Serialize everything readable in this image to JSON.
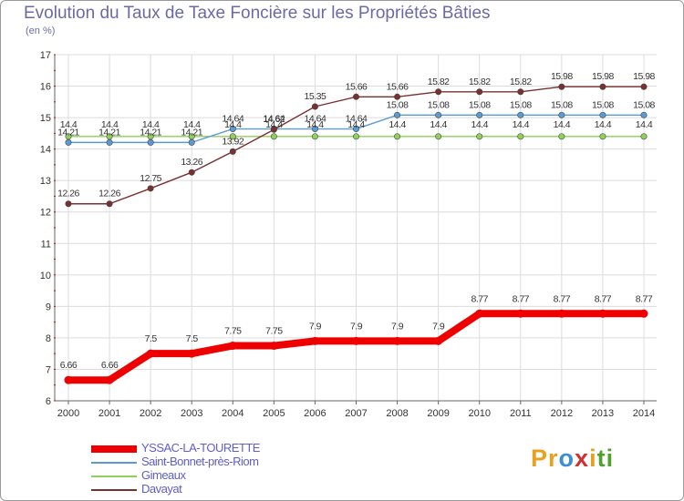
{
  "chart_data": {
    "type": "line",
    "title": "Evolution du Taux de Taxe Foncière sur les Propriétés Bâties",
    "subtitle": "(en %)",
    "x": [
      "2000",
      "2001",
      "2002",
      "2003",
      "2004",
      "2005",
      "2006",
      "2007",
      "2008",
      "2009",
      "2010",
      "2011",
      "2012",
      "2013",
      "2014"
    ],
    "ylim": [
      6,
      17
    ],
    "yticks": [
      6,
      7,
      8,
      9,
      10,
      11,
      12,
      13,
      14,
      15,
      16,
      17
    ],
    "series": [
      {
        "name": "YSSAC-LA-TOURETTE",
        "color": "#ee0000",
        "values": [
          6.66,
          6.66,
          7.5,
          7.5,
          7.75,
          7.75,
          7.9,
          7.9,
          7.9,
          7.9,
          8.77,
          8.77,
          8.77,
          8.77,
          8.77
        ],
        "labels": [
          "6.66",
          "6.66",
          "7.5",
          "7.5",
          "7.75",
          "7.75",
          "7.9",
          "7.9",
          "7.9",
          "7.9",
          "8.77",
          "8.77",
          "8.77",
          "8.77",
          "8.77"
        ]
      },
      {
        "name": "Saint-Bonnet-près-Riom",
        "color": "#5b9bd5",
        "values": [
          14.21,
          14.21,
          14.21,
          14.21,
          14.64,
          14.64,
          14.64,
          14.64,
          15.08,
          15.08,
          15.08,
          15.08,
          15.08,
          15.08,
          15.08
        ],
        "labels": [
          "14.21",
          "14.21",
          "14.21",
          "14.21",
          "14.64",
          "14.64",
          "14.64",
          "14.64",
          "15.08",
          "15.08",
          "15.08",
          "15.08",
          "15.08",
          "15.08",
          "15.08"
        ]
      },
      {
        "name": "Gimeaux",
        "color": "#8fd05a",
        "values": [
          14.4,
          14.4,
          14.4,
          14.4,
          14.4,
          14.4,
          14.4,
          14.4,
          14.4,
          14.4,
          14.4,
          14.4,
          14.4,
          14.4,
          14.4
        ],
        "labels": [
          "14.4",
          "14.4",
          "14.4",
          "14.4",
          "14.4",
          "14.4",
          "14.4",
          "14.4",
          "14.4",
          "14.4",
          "14.4",
          "14.4",
          "14.4",
          "14.4",
          "14.4"
        ]
      },
      {
        "name": "Davayat",
        "color": "#7a3030",
        "values": [
          12.26,
          12.26,
          12.75,
          13.26,
          13.92,
          14.62,
          15.35,
          15.66,
          15.66,
          15.82,
          15.82,
          15.82,
          15.98,
          15.98,
          15.98
        ],
        "labels": [
          "12.26",
          "12.26",
          "12.75",
          "13.26",
          "13.92",
          "14.62",
          "15.35",
          "15.66",
          "15.66",
          "15.82",
          "15.82",
          "15.82",
          "15.98",
          "15.98",
          "15.98"
        ]
      }
    ]
  },
  "brand": {
    "p1": "Pr",
    "p2": "o",
    "p3": "x",
    "p4": "i",
    "p5": "ti"
  }
}
